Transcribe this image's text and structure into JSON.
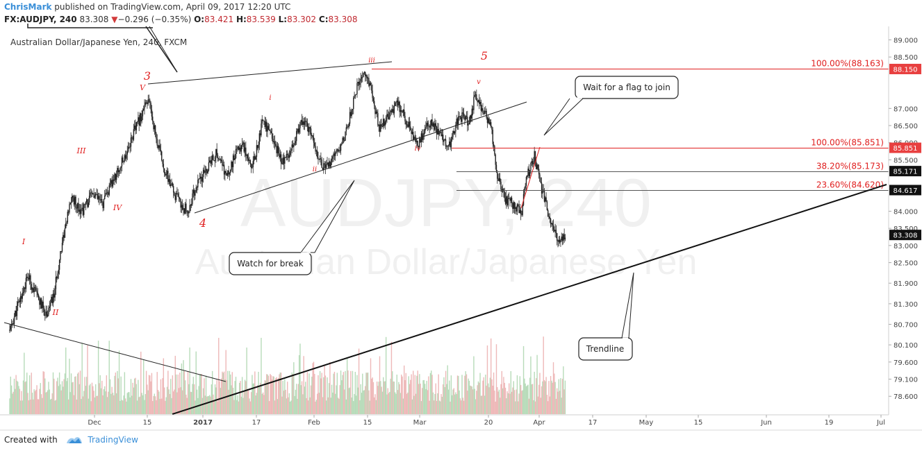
{
  "header": {
    "author": "ChrisMark",
    "published_text": "published on TradingView.com, April 09, 2017 12:20 UTC",
    "symbol": "FX:AUDJPY, 240",
    "last": "83.308",
    "change": "−0.296 (−0.35%)",
    "o_label": "O:",
    "o_value": "83.421",
    "h_label": "H:",
    "h_value": "83.539",
    "l_label": "L:",
    "l_value": "83.302",
    "c_label": "C:",
    "c_value": "83.308"
  },
  "footer": {
    "created_with": "Created with",
    "brand": "TradingView"
  },
  "colors": {
    "candles": "#222222",
    "wave_labels": "#e01e1e",
    "fib_red": "#e01e1e",
    "badge_red": "#e83f3f",
    "badge_dark": "#111111",
    "volume_up": "#b7dbb9",
    "volume_down": "#eeb8b8"
  },
  "chart_data": {
    "type": "candlestick",
    "title": "Australian Dollar/Japanese Yen, 240, FXCM",
    "watermark_large": "AUDJPY, 240",
    "watermark_small": "Australian Dollar/Japanese Yen",
    "ylim": [
      78.2,
      89.3
    ],
    "y_ticks": [
      "89.000",
      "88.500",
      "87.000",
      "86.500",
      "86.000",
      "85.500",
      "84.000",
      "83.500",
      "83.000",
      "82.500",
      "81.900",
      "81.300",
      "80.700",
      "80.100",
      "79.600",
      "79.100",
      "78.600"
    ],
    "x_ticks": [
      "Dec",
      "15",
      "2017",
      "17",
      "Feb",
      "15",
      "Mar",
      "20",
      "Apr",
      "17",
      "May",
      "15",
      "Jun",
      "19",
      "Jul"
    ],
    "price_badges": [
      {
        "text": "88.150",
        "value": 88.15,
        "style": "red"
      },
      {
        "text": "85.851",
        "value": 85.851,
        "style": "red"
      },
      {
        "text": "85.171",
        "value": 85.171,
        "style": "dark"
      },
      {
        "text": "84.617",
        "value": 84.617,
        "style": "dark"
      },
      {
        "text": "83.308",
        "value": 83.308,
        "style": "dark"
      }
    ],
    "fib_levels": [
      {
        "label": "100.00%(88.163)",
        "value": 88.163
      },
      {
        "label": "100.00%(85.851)",
        "value": 85.851
      },
      {
        "label": "38.20%(85.173)",
        "value": 85.173
      },
      {
        "label": "23.60%(84.620)",
        "value": 84.62
      }
    ],
    "wave_labels": [
      "I",
      "II",
      "III",
      "IV",
      "V",
      "3",
      "4",
      "i",
      "ii",
      "iii",
      "iv",
      "v",
      "5"
    ],
    "callouts": [
      "Watch for break",
      "Wait for a flag to join",
      "Trendline"
    ],
    "price_path": [
      [
        0.0,
        80.5
      ],
      [
        0.3,
        81.2
      ],
      [
        0.7,
        82.1
      ],
      [
        1.0,
        81.6
      ],
      [
        1.4,
        81.0
      ],
      [
        1.7,
        81.5
      ],
      [
        2.0,
        83.0
      ],
      [
        2.4,
        84.4
      ],
      [
        2.8,
        84.0
      ],
      [
        3.2,
        84.5
      ],
      [
        3.6,
        84.2
      ],
      [
        4.0,
        84.9
      ],
      [
        4.4,
        85.5
      ],
      [
        4.8,
        86.3
      ],
      [
        5.2,
        87.0
      ],
      [
        5.4,
        87.2
      ],
      [
        5.7,
        86.0
      ],
      [
        6.0,
        85.2
      ],
      [
        6.3,
        84.6
      ],
      [
        6.6,
        84.2
      ],
      [
        6.9,
        84.0
      ],
      [
        7.2,
        84.7
      ],
      [
        7.6,
        85.2
      ],
      [
        8.0,
        85.7
      ],
      [
        8.4,
        85.0
      ],
      [
        8.7,
        85.6
      ],
      [
        9.0,
        86.0
      ],
      [
        9.4,
        85.3
      ],
      [
        9.8,
        86.7
      ],
      [
        10.2,
        86.0
      ],
      [
        10.6,
        85.4
      ],
      [
        11.0,
        86.1
      ],
      [
        11.4,
        86.7
      ],
      [
        11.8,
        85.9
      ],
      [
        12.2,
        85.2
      ],
      [
        12.6,
        85.6
      ],
      [
        13.0,
        86.3
      ],
      [
        13.4,
        87.5
      ],
      [
        13.7,
        88.1
      ],
      [
        14.0,
        87.5
      ],
      [
        14.3,
        86.4
      ],
      [
        14.7,
        86.8
      ],
      [
        15.0,
        87.1
      ],
      [
        15.4,
        86.6
      ],
      [
        15.8,
        85.9
      ],
      [
        16.2,
        86.6
      ],
      [
        16.6,
        86.3
      ],
      [
        17.0,
        85.9
      ],
      [
        17.4,
        86.8
      ],
      [
        17.8,
        86.6
      ],
      [
        18.0,
        87.4
      ],
      [
        18.3,
        86.9
      ],
      [
        18.6,
        86.6
      ],
      [
        18.9,
        84.9
      ],
      [
        19.2,
        84.3
      ],
      [
        19.5,
        84.2
      ],
      [
        19.8,
        84.0
      ],
      [
        20.0,
        85.0
      ],
      [
        20.3,
        85.6
      ],
      [
        20.6,
        84.6
      ],
      [
        20.9,
        83.8
      ],
      [
        21.2,
        83.1
      ],
      [
        21.5,
        83.3
      ]
    ]
  }
}
